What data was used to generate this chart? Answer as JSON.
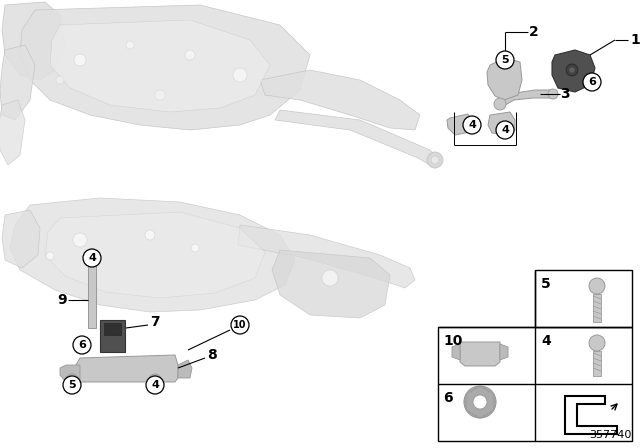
{
  "bg_color": "#ffffff",
  "diagram_number": "357740",
  "faded_part_color": "#e0e0e0",
  "faded_edge_color": "#c0c0c0",
  "active_part_color": "#c8c8c8",
  "active_edge_color": "#999999",
  "dark_part_color": "#505050",
  "dark_edge_color": "#333333",
  "callout_bg": "#ffffff",
  "callout_edge": "#000000",
  "label_color": "#000000",
  "line_color": "#000000",
  "table_border": "#000000",
  "table_bg": "#ffffff"
}
